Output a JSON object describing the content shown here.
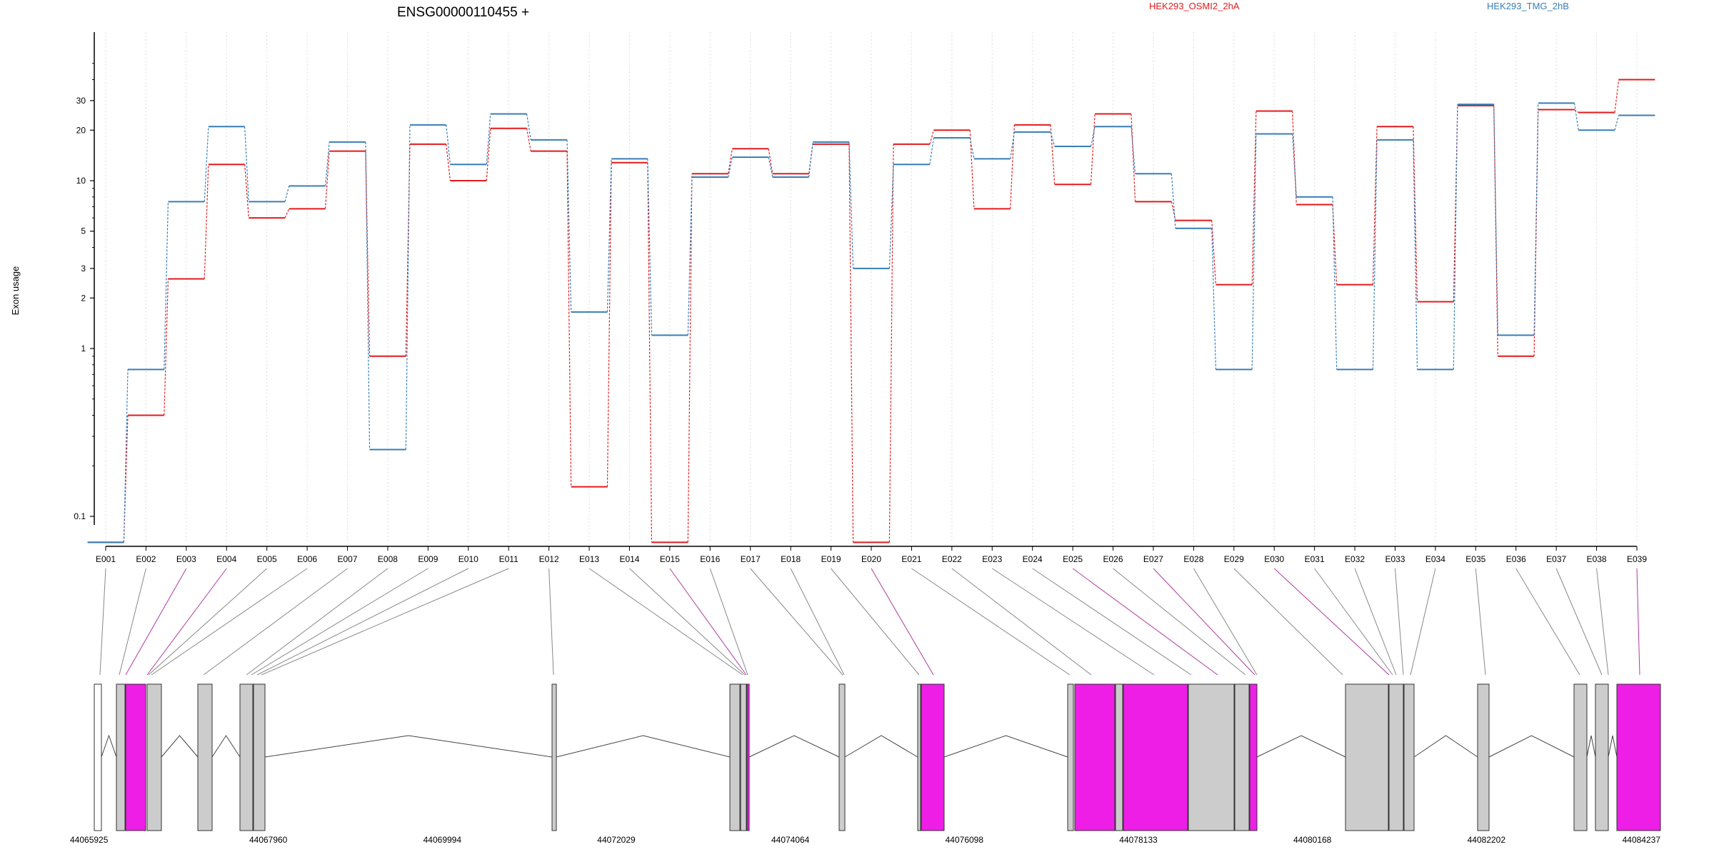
{
  "title": "ENSG00000110455 +",
  "ylabel": "Exon usage",
  "chart_data": {
    "type": "line",
    "title": "ENSG00000110455 +",
    "ylabel": "Exon usage",
    "y_scale": "log",
    "y_ticks": [
      "0.1",
      "1",
      "2",
      "3",
      "5",
      "10",
      "20",
      "30"
    ],
    "categories": [
      "E001",
      "E002",
      "E003",
      "E004",
      "E005",
      "E006",
      "E007",
      "E008",
      "E009",
      "E010",
      "E011",
      "E012",
      "E013",
      "E014",
      "E015",
      "E016",
      "E017",
      "E018",
      "E019",
      "E020",
      "E021",
      "E022",
      "E023",
      "E024",
      "E025",
      "E026",
      "E027",
      "E028",
      "E029",
      "E030",
      "E031",
      "E032",
      "E033",
      "E034",
      "E035",
      "E036",
      "E037",
      "E038",
      "E039"
    ],
    "series": [
      {
        "name": "HEK293_OSMI2_2hA",
        "color": "#e41a1c",
        "values": [
          0.07,
          0.4,
          2.6,
          12.5,
          6,
          6.8,
          15,
          0.9,
          16.5,
          10,
          20.5,
          15,
          0.15,
          12.8,
          0.07,
          11,
          15.5,
          11,
          16.5,
          0.07,
          16.5,
          20,
          6.8,
          21.5,
          9.5,
          25,
          7.5,
          5.8,
          2.4,
          26,
          7.2,
          2.4,
          21,
          1.9,
          28,
          0.9,
          26.5,
          25.5,
          40
        ]
      },
      {
        "name": "HEK293_TMG_2hB",
        "color": "#377eb8",
        "values": [
          0.07,
          0.75,
          7.5,
          21,
          7.5,
          9.3,
          17,
          0.25,
          21.5,
          12.5,
          25,
          17.5,
          1.65,
          13.5,
          1.2,
          10.5,
          13.8,
          10.5,
          17,
          3,
          12.5,
          18,
          13.5,
          19.5,
          16,
          21,
          11,
          5.2,
          0.75,
          19,
          8,
          0.75,
          17.5,
          0.75,
          28.5,
          1.2,
          29,
          20,
          24.5
        ]
      }
    ]
  },
  "gene_model": {
    "coordinate_labels": [
      "44065925",
      "44067960",
      "44069994",
      "44072029",
      "44074064",
      "44076098",
      "44078133",
      "44080168",
      "44082202",
      "44084237"
    ]
  }
}
